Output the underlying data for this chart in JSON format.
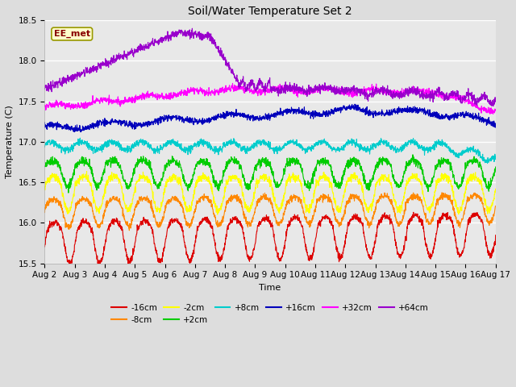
{
  "title": "Soil/Water Temperature Set 2",
  "xlabel": "Time",
  "ylabel": "Temperature (C)",
  "ylim": [
    15.5,
    18.5
  ],
  "xlim": [
    0,
    15
  ],
  "background_color": "#dddddd",
  "plot_bg_color": "#e8e8e8",
  "annotation_text": "EE_met",
  "annotation_bg": "#ffffcc",
  "annotation_border": "#999900",
  "annotation_text_color": "#880000",
  "xtick_labels": [
    "Aug 2",
    "Aug 3",
    "Aug 4",
    "Aug 5",
    "Aug 6",
    "Aug 7",
    "Aug 8",
    "Aug 9",
    "Aug 10",
    "Aug 11",
    "Aug 12",
    "Aug 13",
    "Aug 14",
    "Aug 15",
    "Aug 16",
    "Aug 17"
  ],
  "colors": {
    "-16cm": "#dd0000",
    "-8cm": "#ff8800",
    "-2cm": "#ffff00",
    "+2cm": "#00cc00",
    "+8cm": "#00cccc",
    "+16cm": "#0000bb",
    "+32cm": "#ff00ff",
    "+64cm": "#9900cc"
  },
  "n_points": 2000,
  "duration_days": 15
}
